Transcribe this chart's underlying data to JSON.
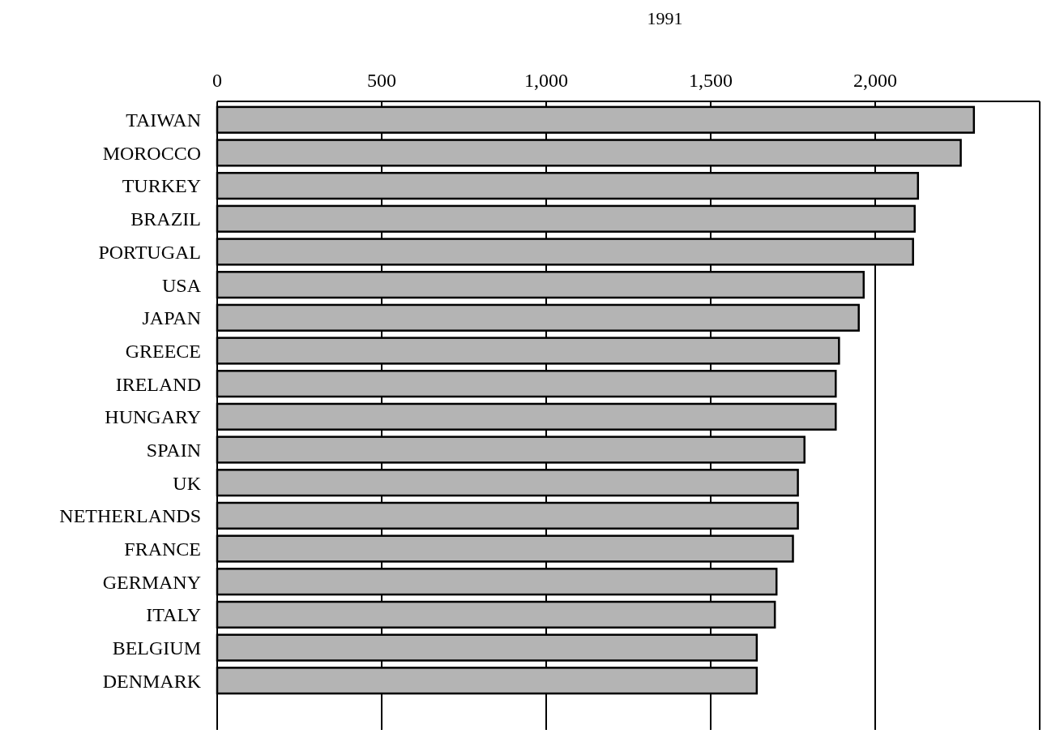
{
  "chart_data": {
    "type": "bar",
    "orientation": "horizontal",
    "title": "1991",
    "categories": [
      "TAIWAN",
      "MOROCCO",
      "TURKEY",
      "BRAZIL",
      "PORTUGAL",
      "USA",
      "JAPAN",
      "GREECE",
      "IRELAND",
      "HUNGARY",
      "SPAIN",
      "UK",
      "NETHERLANDS",
      "FRANCE",
      "GERMANY",
      "ITALY",
      "BELGIUM",
      "DENMARK"
    ],
    "values": [
      2300,
      2260,
      2130,
      2120,
      2115,
      1965,
      1950,
      1890,
      1880,
      1880,
      1785,
      1765,
      1765,
      1750,
      1700,
      1695,
      1640,
      1640
    ],
    "color": "#b4b4b4",
    "xlim": [
      0,
      2500
    ],
    "xticks": [
      0,
      500,
      {
        "value": 1000,
        "label": "1,000"
      },
      {
        "value": 1500,
        "label": "1,500"
      },
      {
        "value": 2000,
        "label": "2,000"
      }
    ],
    "grid": "x"
  }
}
